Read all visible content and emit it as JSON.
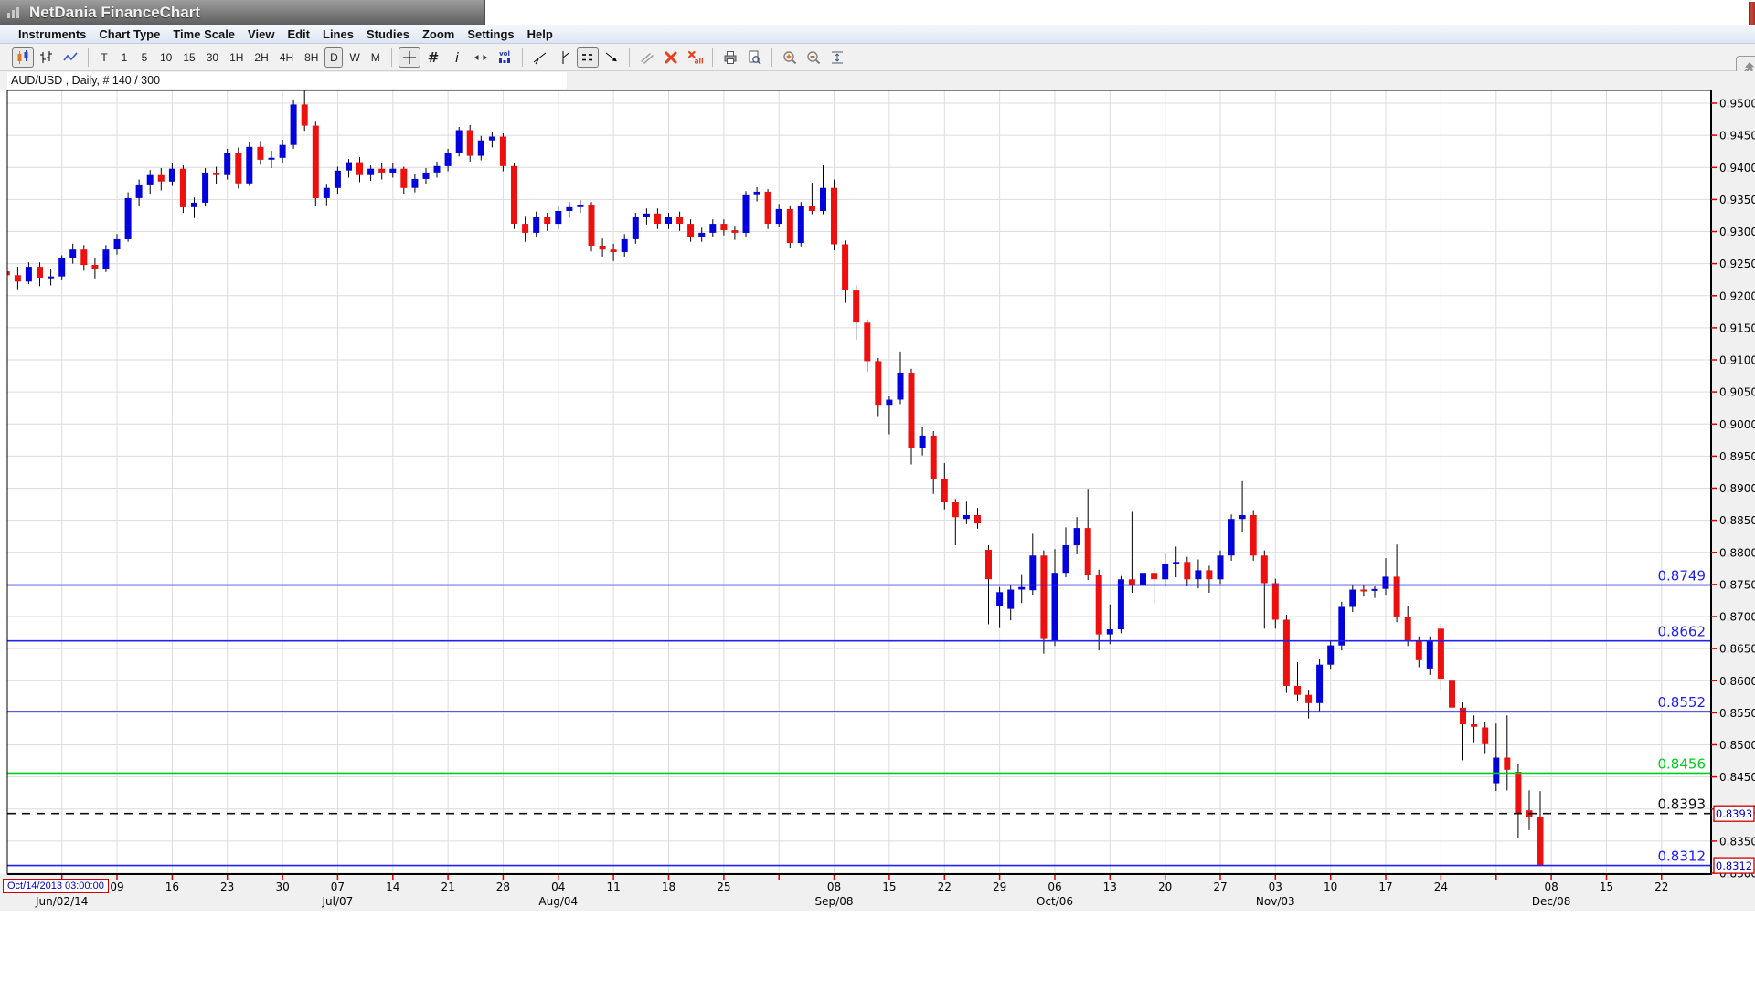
{
  "window": {
    "title": "NetDania FinanceChart"
  },
  "menu": {
    "items": [
      "Instruments",
      "Chart Type",
      "Time Scale",
      "View",
      "Edit",
      "Lines",
      "Studies",
      "Zoom",
      "Settings",
      "Help"
    ]
  },
  "toolbar": {
    "groups": [
      {
        "buttons": [
          {
            "icon": "candlestick-chart",
            "selected": true
          },
          {
            "icon": "ohlc-bar-chart"
          },
          {
            "icon": "line-chart"
          }
        ]
      },
      {
        "buttons": [
          {
            "label": "T"
          },
          {
            "label": "1"
          },
          {
            "label": "5"
          },
          {
            "label": "10"
          },
          {
            "label": "15"
          },
          {
            "label": "30"
          },
          {
            "label": "1H"
          },
          {
            "label": "2H"
          },
          {
            "label": "4H"
          },
          {
            "label": "8H"
          },
          {
            "label": "D",
            "selected": true
          },
          {
            "label": "W"
          },
          {
            "label": "M"
          }
        ]
      },
      {
        "buttons": [
          {
            "icon": "crosshair",
            "selected": true
          },
          {
            "icon": "grid"
          },
          {
            "icon": "info"
          },
          {
            "icon": "expand-horizontal"
          },
          {
            "icon": "volume"
          }
        ]
      },
      {
        "buttons": [
          {
            "icon": "trendline"
          },
          {
            "icon": "vertical-line"
          },
          {
            "icon": "horizontal-lines",
            "selected": true
          },
          {
            "icon": "ray-arrow"
          }
        ]
      },
      {
        "buttons": [
          {
            "icon": "parallel-lines"
          },
          {
            "icon": "delete-selected"
          },
          {
            "icon": "delete-all"
          }
        ]
      },
      {
        "buttons": [
          {
            "icon": "print"
          },
          {
            "icon": "print-preview"
          }
        ]
      },
      {
        "buttons": [
          {
            "icon": "zoom-in"
          },
          {
            "icon": "zoom-out"
          },
          {
            "icon": "fit-vertical"
          }
        ]
      }
    ],
    "pin_button": "pin"
  },
  "chart_data": {
    "type": "candlestick",
    "instrument_label": "AUD/USD , Daily, # 140 / 300",
    "symbol": "AUD/USD",
    "timeframe": "Daily",
    "bars_shown": 140,
    "bars_total": 300,
    "bottom_left_datetime": "Oct/14/2013 03:00:00",
    "y_axis": {
      "min": 0.83,
      "max": 0.95,
      "step": 0.005,
      "decimals": 4
    },
    "x_ticks": [
      {
        "i": 10,
        "label": "09"
      },
      {
        "i": 15,
        "label": "16"
      },
      {
        "i": 20,
        "label": "23"
      },
      {
        "i": 25,
        "label": "30"
      },
      {
        "i": 30,
        "label": "07"
      },
      {
        "i": 35,
        "label": "14"
      },
      {
        "i": 40,
        "label": "21"
      },
      {
        "i": 45,
        "label": "28"
      },
      {
        "i": 50,
        "label": "04"
      },
      {
        "i": 55,
        "label": "11"
      },
      {
        "i": 60,
        "label": "18"
      },
      {
        "i": 65,
        "label": "25"
      },
      {
        "i": 75,
        "label": "08"
      },
      {
        "i": 80,
        "label": "15"
      },
      {
        "i": 85,
        "label": "22"
      },
      {
        "i": 90,
        "label": "29"
      },
      {
        "i": 95,
        "label": "06"
      },
      {
        "i": 100,
        "label": "13"
      },
      {
        "i": 105,
        "label": "20"
      },
      {
        "i": 110,
        "label": "27"
      },
      {
        "i": 115,
        "label": "03"
      },
      {
        "i": 120,
        "label": "10"
      },
      {
        "i": 125,
        "label": "17"
      },
      {
        "i": 130,
        "label": "24"
      },
      {
        "i": 140,
        "label": "08"
      },
      {
        "i": 145,
        "label": "15"
      },
      {
        "i": 150,
        "label": "22"
      }
    ],
    "month_labels": [
      {
        "i": 5,
        "label": "Jun/02/14"
      },
      {
        "i": 30,
        "label": "Jul/07"
      },
      {
        "i": 50,
        "label": "Aug/04"
      },
      {
        "i": 75,
        "label": "Sep/08"
      },
      {
        "i": 95,
        "label": "Oct/06"
      },
      {
        "i": 115,
        "label": "Nov/03"
      },
      {
        "i": 140,
        "label": "Dec/08"
      }
    ],
    "lines": [
      {
        "price": 0.8749,
        "label": "0.8749",
        "color": "#2222ee",
        "style": "solid"
      },
      {
        "price": 0.8662,
        "label": "0.8662",
        "color": "#2222ee",
        "style": "solid"
      },
      {
        "price": 0.8552,
        "label": "0.8552",
        "color": "#2222ee",
        "style": "solid"
      },
      {
        "price": 0.8456,
        "label": "0.8456",
        "color": "#00cc22",
        "style": "solid"
      },
      {
        "price": 0.8393,
        "label": "0.8393",
        "color": "#111111",
        "style": "dashed",
        "axis_box": "0.8393"
      },
      {
        "price": 0.8312,
        "label": "0.8312",
        "color": "#2222ee",
        "style": "solid",
        "axis_box": "0.8312"
      }
    ],
    "colors": {
      "up": "#0202dd",
      "down": "#ee0f0f",
      "wick": "#000000",
      "grid": "#dcdcdc",
      "tick": "#dd0000",
      "axis_box_border": "#cc0000",
      "axis_box_text": "#0000cc"
    },
    "candles": [
      [
        0.9238,
        0.9248,
        0.9218,
        0.9232
      ],
      [
        0.9232,
        0.9245,
        0.921,
        0.9222
      ],
      [
        0.9222,
        0.9252,
        0.9218,
        0.9245
      ],
      [
        0.9245,
        0.9252,
        0.9215,
        0.9228
      ],
      [
        0.9228,
        0.9242,
        0.9216,
        0.923
      ],
      [
        0.923,
        0.9263,
        0.9224,
        0.9258
      ],
      [
        0.9258,
        0.9281,
        0.925,
        0.9272
      ],
      [
        0.9272,
        0.9279,
        0.9239,
        0.9248
      ],
      [
        0.9248,
        0.9259,
        0.9227,
        0.9242
      ],
      [
        0.9242,
        0.9279,
        0.9237,
        0.9272
      ],
      [
        0.9272,
        0.9296,
        0.9264,
        0.9288
      ],
      [
        0.9288,
        0.9361,
        0.9284,
        0.9352
      ],
      [
        0.9352,
        0.9381,
        0.9339,
        0.9372
      ],
      [
        0.9372,
        0.9396,
        0.9359,
        0.9388
      ],
      [
        0.9388,
        0.9399,
        0.9364,
        0.9378
      ],
      [
        0.9378,
        0.9406,
        0.9371,
        0.9398
      ],
      [
        0.9398,
        0.9403,
        0.9329,
        0.9338
      ],
      [
        0.9338,
        0.9353,
        0.9321,
        0.9345
      ],
      [
        0.9345,
        0.9399,
        0.9339,
        0.9392
      ],
      [
        0.9392,
        0.9401,
        0.9374,
        0.9388
      ],
      [
        0.9388,
        0.9429,
        0.9381,
        0.9422
      ],
      [
        0.9422,
        0.9431,
        0.9367,
        0.9375
      ],
      [
        0.9375,
        0.9439,
        0.9371,
        0.9432
      ],
      [
        0.9432,
        0.9441,
        0.9404,
        0.9412
      ],
      [
        0.9412,
        0.9426,
        0.9399,
        0.9415
      ],
      [
        0.9415,
        0.9443,
        0.9407,
        0.9435
      ],
      [
        0.9435,
        0.9506,
        0.9429,
        0.9498
      ],
      [
        0.9498,
        0.9526,
        0.9457,
        0.9465
      ],
      [
        0.9465,
        0.9471,
        0.9339,
        0.9352
      ],
      [
        0.9352,
        0.9373,
        0.9341,
        0.9368
      ],
      [
        0.9368,
        0.9401,
        0.9359,
        0.9395
      ],
      [
        0.9395,
        0.9413,
        0.9384,
        0.9408
      ],
      [
        0.9408,
        0.9416,
        0.9377,
        0.9388
      ],
      [
        0.9388,
        0.9403,
        0.9379,
        0.9398
      ],
      [
        0.9398,
        0.9406,
        0.9381,
        0.9392
      ],
      [
        0.9392,
        0.9406,
        0.9384,
        0.9398
      ],
      [
        0.9398,
        0.9401,
        0.9359,
        0.9368
      ],
      [
        0.9368,
        0.9389,
        0.9361,
        0.9382
      ],
      [
        0.9382,
        0.9399,
        0.9374,
        0.9392
      ],
      [
        0.9392,
        0.9409,
        0.9384,
        0.9402
      ],
      [
        0.9402,
        0.9429,
        0.9394,
        0.9422
      ],
      [
        0.9422,
        0.9463,
        0.9417,
        0.9458
      ],
      [
        0.9458,
        0.9466,
        0.9409,
        0.9418
      ],
      [
        0.9418,
        0.9449,
        0.9411,
        0.9442
      ],
      [
        0.9442,
        0.9456,
        0.9431,
        0.9448
      ],
      [
        0.9448,
        0.9453,
        0.9394,
        0.9402
      ],
      [
        0.9402,
        0.9406,
        0.9304,
        0.9312
      ],
      [
        0.9312,
        0.9323,
        0.9284,
        0.9298
      ],
      [
        0.9298,
        0.9331,
        0.9291,
        0.9322
      ],
      [
        0.9322,
        0.9329,
        0.9301,
        0.9312
      ],
      [
        0.9312,
        0.9339,
        0.9304,
        0.9332
      ],
      [
        0.9332,
        0.9346,
        0.9321,
        0.9338
      ],
      [
        0.9338,
        0.9349,
        0.9329,
        0.9342
      ],
      [
        0.9342,
        0.9346,
        0.9269,
        0.9278
      ],
      [
        0.9278,
        0.9289,
        0.9261,
        0.9272
      ],
      [
        0.9272,
        0.9281,
        0.9254,
        0.9268
      ],
      [
        0.9268,
        0.9296,
        0.9261,
        0.9288
      ],
      [
        0.9288,
        0.9329,
        0.9281,
        0.9322
      ],
      [
        0.9322,
        0.9336,
        0.9311,
        0.9328
      ],
      [
        0.9328,
        0.9336,
        0.9304,
        0.9312
      ],
      [
        0.9312,
        0.9329,
        0.9304,
        0.9322
      ],
      [
        0.9322,
        0.9331,
        0.9301,
        0.9312
      ],
      [
        0.9312,
        0.9319,
        0.9284,
        0.9292
      ],
      [
        0.9292,
        0.9306,
        0.9284,
        0.9298
      ],
      [
        0.9298,
        0.9319,
        0.9291,
        0.9312
      ],
      [
        0.9312,
        0.9319,
        0.9294,
        0.9302
      ],
      [
        0.9302,
        0.9309,
        0.9287,
        0.9298
      ],
      [
        0.9298,
        0.9363,
        0.9291,
        0.9358
      ],
      [
        0.9358,
        0.9369,
        0.9347,
        0.9362
      ],
      [
        0.9362,
        0.9366,
        0.9304,
        0.9312
      ],
      [
        0.9312,
        0.9343,
        0.9307,
        0.9335
      ],
      [
        0.9335,
        0.9341,
        0.9274,
        0.9282
      ],
      [
        0.9282,
        0.9346,
        0.9277,
        0.934
      ],
      [
        0.934,
        0.9376,
        0.9327,
        0.9332
      ],
      [
        0.9332,
        0.9403,
        0.9327,
        0.9368
      ],
      [
        0.9368,
        0.9381,
        0.9271,
        0.928
      ],
      [
        0.928,
        0.9286,
        0.9189,
        0.9208
      ],
      [
        0.9208,
        0.9216,
        0.9131,
        0.9158
      ],
      [
        0.9158,
        0.9163,
        0.9081,
        0.9098
      ],
      [
        0.9098,
        0.9103,
        0.9011,
        0.903
      ],
      [
        0.903,
        0.9043,
        0.8984,
        0.9038
      ],
      [
        0.9038,
        0.9113,
        0.9031,
        0.908
      ],
      [
        0.908,
        0.9086,
        0.8937,
        0.8962
      ],
      [
        0.8962,
        0.8996,
        0.8951,
        0.8982
      ],
      [
        0.8982,
        0.8989,
        0.8891,
        0.8915
      ],
      [
        0.8915,
        0.8939,
        0.8867,
        0.8878
      ],
      [
        0.8878,
        0.8883,
        0.8811,
        0.8855
      ],
      [
        0.8852,
        0.8879,
        0.8844,
        0.8858
      ],
      [
        0.8858,
        0.8869,
        0.8837,
        0.8845
      ],
      [
        0.8804,
        0.8811,
        0.8688,
        0.8758
      ],
      [
        0.8716,
        0.8746,
        0.8682,
        0.8738
      ],
      [
        0.8712,
        0.8749,
        0.8694,
        0.8742
      ],
      [
        0.8742,
        0.8766,
        0.8721,
        0.8746
      ],
      [
        0.8741,
        0.8829,
        0.8734,
        0.8795
      ],
      [
        0.8795,
        0.8803,
        0.8642,
        0.8665
      ],
      [
        0.8661,
        0.8805,
        0.8654,
        0.8768
      ],
      [
        0.8768,
        0.8839,
        0.8761,
        0.8811
      ],
      [
        0.8811,
        0.8855,
        0.8797,
        0.8838
      ],
      [
        0.8838,
        0.8899,
        0.8757,
        0.8765
      ],
      [
        0.8765,
        0.8773,
        0.8647,
        0.8672
      ],
      [
        0.8672,
        0.8719,
        0.8657,
        0.868
      ],
      [
        0.868,
        0.8763,
        0.8674,
        0.8758
      ],
      [
        0.8758,
        0.8863,
        0.8737,
        0.8748
      ],
      [
        0.8748,
        0.8786,
        0.8734,
        0.8768
      ],
      [
        0.8768,
        0.8776,
        0.8721,
        0.8758
      ],
      [
        0.8758,
        0.8799,
        0.8747,
        0.8782
      ],
      [
        0.8782,
        0.8809,
        0.8761,
        0.8785
      ],
      [
        0.8785,
        0.8793,
        0.8747,
        0.8758
      ],
      [
        0.8758,
        0.8789,
        0.8744,
        0.8772
      ],
      [
        0.8772,
        0.8779,
        0.8737,
        0.8758
      ],
      [
        0.8758,
        0.8803,
        0.8751,
        0.8795
      ],
      [
        0.8795,
        0.8859,
        0.8787,
        0.8852
      ],
      [
        0.8852,
        0.8911,
        0.8831,
        0.8858
      ],
      [
        0.8858,
        0.8866,
        0.8787,
        0.8795
      ],
      [
        0.8795,
        0.8803,
        0.8681,
        0.8752
      ],
      [
        0.8752,
        0.8759,
        0.8681,
        0.8695
      ],
      [
        0.8695,
        0.8703,
        0.8581,
        0.8592
      ],
      [
        0.8592,
        0.8629,
        0.8569,
        0.8578
      ],
      [
        0.8578,
        0.8586,
        0.8541,
        0.8565
      ],
      [
        0.8565,
        0.8633,
        0.8551,
        0.8625
      ],
      [
        0.8625,
        0.8663,
        0.8617,
        0.8655
      ],
      [
        0.8655,
        0.8723,
        0.8647,
        0.8715
      ],
      [
        0.8715,
        0.8749,
        0.8707,
        0.8742
      ],
      [
        0.8742,
        0.8749,
        0.8731,
        0.874
      ],
      [
        0.874,
        0.8747,
        0.8729,
        0.8743
      ],
      [
        0.8743,
        0.8791,
        0.8734,
        0.8762
      ],
      [
        0.8762,
        0.8812,
        0.8691,
        0.87
      ],
      [
        0.87,
        0.8716,
        0.8654,
        0.8662
      ],
      [
        0.8662,
        0.8669,
        0.8621,
        0.8632
      ],
      [
        0.8619,
        0.8669,
        0.8609,
        0.8662
      ],
      [
        0.8681,
        0.8689,
        0.8586,
        0.8603
      ],
      [
        0.86,
        0.8612,
        0.8545,
        0.8558
      ],
      [
        0.8558,
        0.8566,
        0.8476,
        0.8532
      ],
      [
        0.8532,
        0.8546,
        0.8504,
        0.8528
      ],
      [
        0.8527,
        0.8536,
        0.8487,
        0.8501
      ],
      [
        0.844,
        0.8533,
        0.8428,
        0.848
      ],
      [
        0.848,
        0.8546,
        0.8429,
        0.8461
      ],
      [
        0.8458,
        0.8471,
        0.8354,
        0.8394
      ],
      [
        0.8398,
        0.8429,
        0.8367,
        0.8387
      ],
      [
        0.8387,
        0.8428,
        0.8312,
        0.8312
      ]
    ]
  }
}
